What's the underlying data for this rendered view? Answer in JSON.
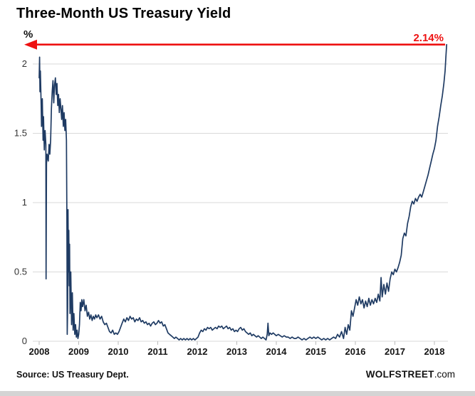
{
  "chart_data": {
    "type": "line",
    "title": "Three-Month US Treasury Yield",
    "unit": "%",
    "xlabel": "",
    "ylabel": "%",
    "x_ticks": [
      2008,
      2009,
      2010,
      2011,
      2012,
      2013,
      2014,
      2015,
      2016,
      2017,
      2018
    ],
    "y_ticks": [
      {
        "value": 0,
        "label": "0"
      },
      {
        "value": 0.5,
        "label": "0.5"
      },
      {
        "value": 1,
        "label": "1"
      },
      {
        "value": 1.5,
        "label": "1.5"
      },
      {
        "value": 2,
        "label": "2"
      }
    ],
    "ylim": [
      0,
      2.2
    ],
    "xlim": [
      2008,
      2018.35
    ],
    "grid": "horizontal",
    "legend": "none",
    "line_color": "#1f3b63",
    "annotation": {
      "label": "2.14%",
      "value": 2.14,
      "color": "#ee1111",
      "style": "horizontal-arrow-pointing-left",
      "span": "full-plot-width"
    },
    "source_note": "Source: US Treasury Dept.",
    "watermark_bold": "WOLFSTREET",
    "watermark_rest": ".com",
    "series": [
      {
        "name": "3-Month US Treasury Yield",
        "points": [
          [
            2008.0,
            1.9
          ],
          [
            2008.01,
            2.05
          ],
          [
            2008.02,
            1.8
          ],
          [
            2008.03,
            1.95
          ],
          [
            2008.05,
            1.7
          ],
          [
            2008.06,
            1.55
          ],
          [
            2008.08,
            1.75
          ],
          [
            2008.1,
            1.45
          ],
          [
            2008.11,
            1.62
          ],
          [
            2008.13,
            1.38
          ],
          [
            2008.15,
            1.52
          ],
          [
            2008.17,
            1.42
          ],
          [
            2008.175,
            0.45
          ],
          [
            2008.185,
            1.28
          ],
          [
            2008.2,
            1.35
          ],
          [
            2008.23,
            1.3
          ],
          [
            2008.25,
            1.42
          ],
          [
            2008.27,
            1.35
          ],
          [
            2008.29,
            1.45
          ],
          [
            2008.31,
            1.68
          ],
          [
            2008.33,
            1.8
          ],
          [
            2008.35,
            1.88
          ],
          [
            2008.37,
            1.72
          ],
          [
            2008.39,
            1.85
          ],
          [
            2008.41,
            1.9
          ],
          [
            2008.43,
            1.78
          ],
          [
            2008.45,
            1.86
          ],
          [
            2008.47,
            1.7
          ],
          [
            2008.49,
            1.78
          ],
          [
            2008.51,
            1.65
          ],
          [
            2008.53,
            1.75
          ],
          [
            2008.55,
            1.68
          ],
          [
            2008.57,
            1.6
          ],
          [
            2008.59,
            1.7
          ],
          [
            2008.61,
            1.55
          ],
          [
            2008.63,
            1.65
          ],
          [
            2008.65,
            1.52
          ],
          [
            2008.67,
            1.6
          ],
          [
            2008.69,
            1.45
          ],
          [
            2008.7,
            0.9
          ],
          [
            2008.71,
            0.05
          ],
          [
            2008.72,
            0.25
          ],
          [
            2008.73,
            0.95
          ],
          [
            2008.74,
            0.5
          ],
          [
            2008.75,
            0.8
          ],
          [
            2008.76,
            0.4
          ],
          [
            2008.77,
            0.7
          ],
          [
            2008.78,
            0.2
          ],
          [
            2008.8,
            0.5
          ],
          [
            2008.82,
            0.12
          ],
          [
            2008.84,
            0.35
          ],
          [
            2008.86,
            0.08
          ],
          [
            2008.88,
            0.2
          ],
          [
            2008.9,
            0.05
          ],
          [
            2008.92,
            0.12
          ],
          [
            2008.94,
            0.03
          ],
          [
            2008.96,
            0.08
          ],
          [
            2008.98,
            0.02
          ],
          [
            2009.0,
            0.05
          ],
          [
            2009.02,
            0.12
          ],
          [
            2009.04,
            0.28
          ],
          [
            2009.06,
            0.22
          ],
          [
            2009.08,
            0.3
          ],
          [
            2009.1,
            0.25
          ],
          [
            2009.13,
            0.3
          ],
          [
            2009.16,
            0.22
          ],
          [
            2009.19,
            0.26
          ],
          [
            2009.22,
            0.18
          ],
          [
            2009.25,
            0.21
          ],
          [
            2009.28,
            0.16
          ],
          [
            2009.31,
            0.19
          ],
          [
            2009.34,
            0.15
          ],
          [
            2009.37,
            0.18
          ],
          [
            2009.4,
            0.16
          ],
          [
            2009.43,
            0.19
          ],
          [
            2009.46,
            0.17
          ],
          [
            2009.5,
            0.19
          ],
          [
            2009.54,
            0.16
          ],
          [
            2009.58,
            0.18
          ],
          [
            2009.62,
            0.14
          ],
          [
            2009.66,
            0.12
          ],
          [
            2009.7,
            0.13
          ],
          [
            2009.74,
            0.1
          ],
          [
            2009.78,
            0.07
          ],
          [
            2009.82,
            0.06
          ],
          [
            2009.86,
            0.08
          ],
          [
            2009.9,
            0.05
          ],
          [
            2009.94,
            0.06
          ],
          [
            2009.98,
            0.05
          ],
          [
            2010.02,
            0.07
          ],
          [
            2010.06,
            0.1
          ],
          [
            2010.1,
            0.13
          ],
          [
            2010.14,
            0.16
          ],
          [
            2010.18,
            0.14
          ],
          [
            2010.22,
            0.17
          ],
          [
            2010.26,
            0.15
          ],
          [
            2010.3,
            0.18
          ],
          [
            2010.34,
            0.16
          ],
          [
            2010.38,
            0.17
          ],
          [
            2010.42,
            0.14
          ],
          [
            2010.46,
            0.16
          ],
          [
            2010.5,
            0.15
          ],
          [
            2010.54,
            0.17
          ],
          [
            2010.58,
            0.14
          ],
          [
            2010.62,
            0.15
          ],
          [
            2010.66,
            0.13
          ],
          [
            2010.7,
            0.14
          ],
          [
            2010.74,
            0.12
          ],
          [
            2010.78,
            0.13
          ],
          [
            2010.82,
            0.11
          ],
          [
            2010.86,
            0.13
          ],
          [
            2010.9,
            0.14
          ],
          [
            2010.94,
            0.12
          ],
          [
            2010.98,
            0.13
          ],
          [
            2011.02,
            0.15
          ],
          [
            2011.06,
            0.13
          ],
          [
            2011.1,
            0.14
          ],
          [
            2011.14,
            0.11
          ],
          [
            2011.18,
            0.12
          ],
          [
            2011.22,
            0.09
          ],
          [
            2011.26,
            0.06
          ],
          [
            2011.3,
            0.05
          ],
          [
            2011.34,
            0.04
          ],
          [
            2011.38,
            0.03
          ],
          [
            2011.42,
            0.02
          ],
          [
            2011.46,
            0.03
          ],
          [
            2011.5,
            0.02
          ],
          [
            2011.54,
            0.01
          ],
          [
            2011.58,
            0.02
          ],
          [
            2011.62,
            0.01
          ],
          [
            2011.66,
            0.02
          ],
          [
            2011.7,
            0.01
          ],
          [
            2011.74,
            0.02
          ],
          [
            2011.78,
            0.01
          ],
          [
            2011.82,
            0.02
          ],
          [
            2011.86,
            0.01
          ],
          [
            2011.9,
            0.02
          ],
          [
            2011.94,
            0.01
          ],
          [
            2011.98,
            0.02
          ],
          [
            2012.02,
            0.03
          ],
          [
            2012.06,
            0.06
          ],
          [
            2012.1,
            0.08
          ],
          [
            2012.14,
            0.07
          ],
          [
            2012.18,
            0.09
          ],
          [
            2012.22,
            0.08
          ],
          [
            2012.26,
            0.1
          ],
          [
            2012.3,
            0.09
          ],
          [
            2012.34,
            0.1
          ],
          [
            2012.38,
            0.08
          ],
          [
            2012.42,
            0.09
          ],
          [
            2012.46,
            0.1
          ],
          [
            2012.5,
            0.09
          ],
          [
            2012.54,
            0.11
          ],
          [
            2012.58,
            0.1
          ],
          [
            2012.62,
            0.11
          ],
          [
            2012.66,
            0.09
          ],
          [
            2012.7,
            0.1
          ],
          [
            2012.74,
            0.11
          ],
          [
            2012.78,
            0.09
          ],
          [
            2012.82,
            0.1
          ],
          [
            2012.86,
            0.08
          ],
          [
            2012.9,
            0.09
          ],
          [
            2012.94,
            0.07
          ],
          [
            2012.98,
            0.08
          ],
          [
            2013.02,
            0.07
          ],
          [
            2013.06,
            0.09
          ],
          [
            2013.1,
            0.1
          ],
          [
            2013.14,
            0.08
          ],
          [
            2013.18,
            0.09
          ],
          [
            2013.22,
            0.07
          ],
          [
            2013.26,
            0.06
          ],
          [
            2013.3,
            0.05
          ],
          [
            2013.34,
            0.06
          ],
          [
            2013.38,
            0.04
          ],
          [
            2013.42,
            0.05
          ],
          [
            2013.46,
            0.04
          ],
          [
            2013.5,
            0.03
          ],
          [
            2013.54,
            0.04
          ],
          [
            2013.58,
            0.03
          ],
          [
            2013.62,
            0.02
          ],
          [
            2013.66,
            0.03
          ],
          [
            2013.7,
            0.02
          ],
          [
            2013.74,
            0.01
          ],
          [
            2013.77,
            0.05
          ],
          [
            2013.79,
            0.13
          ],
          [
            2013.81,
            0.04
          ],
          [
            2013.84,
            0.06
          ],
          [
            2013.88,
            0.05
          ],
          [
            2013.92,
            0.06
          ],
          [
            2013.96,
            0.05
          ],
          [
            2014.0,
            0.04
          ],
          [
            2014.05,
            0.05
          ],
          [
            2014.1,
            0.04
          ],
          [
            2014.15,
            0.03
          ],
          [
            2014.2,
            0.04
          ],
          [
            2014.25,
            0.03
          ],
          [
            2014.3,
            0.03
          ],
          [
            2014.35,
            0.02
          ],
          [
            2014.4,
            0.03
          ],
          [
            2014.45,
            0.02
          ],
          [
            2014.5,
            0.02
          ],
          [
            2014.55,
            0.03
          ],
          [
            2014.6,
            0.02
          ],
          [
            2014.65,
            0.01
          ],
          [
            2014.7,
            0.02
          ],
          [
            2014.75,
            0.01
          ],
          [
            2014.8,
            0.02
          ],
          [
            2014.85,
            0.03
          ],
          [
            2014.9,
            0.02
          ],
          [
            2014.95,
            0.03
          ],
          [
            2015.0,
            0.02
          ],
          [
            2015.05,
            0.03
          ],
          [
            2015.1,
            0.02
          ],
          [
            2015.15,
            0.01
          ],
          [
            2015.2,
            0.02
          ],
          [
            2015.25,
            0.01
          ],
          [
            2015.3,
            0.02
          ],
          [
            2015.35,
            0.01
          ],
          [
            2015.4,
            0.02
          ],
          [
            2015.45,
            0.03
          ],
          [
            2015.5,
            0.02
          ],
          [
            2015.55,
            0.05
          ],
          [
            2015.6,
            0.03
          ],
          [
            2015.65,
            0.07
          ],
          [
            2015.7,
            0.02
          ],
          [
            2015.74,
            0.1
          ],
          [
            2015.78,
            0.05
          ],
          [
            2015.82,
            0.12
          ],
          [
            2015.86,
            0.08
          ],
          [
            2015.9,
            0.22
          ],
          [
            2015.94,
            0.18
          ],
          [
            2015.98,
            0.24
          ],
          [
            2016.02,
            0.3
          ],
          [
            2016.06,
            0.26
          ],
          [
            2016.1,
            0.32
          ],
          [
            2016.14,
            0.27
          ],
          [
            2016.18,
            0.3
          ],
          [
            2016.22,
            0.24
          ],
          [
            2016.26,
            0.29
          ],
          [
            2016.3,
            0.25
          ],
          [
            2016.34,
            0.31
          ],
          [
            2016.38,
            0.26
          ],
          [
            2016.42,
            0.3
          ],
          [
            2016.46,
            0.27
          ],
          [
            2016.5,
            0.31
          ],
          [
            2016.54,
            0.28
          ],
          [
            2016.58,
            0.34
          ],
          [
            2016.62,
            0.29
          ],
          [
            2016.65,
            0.46
          ],
          [
            2016.68,
            0.32
          ],
          [
            2016.72,
            0.41
          ],
          [
            2016.76,
            0.34
          ],
          [
            2016.8,
            0.42
          ],
          [
            2016.84,
            0.36
          ],
          [
            2016.88,
            0.45
          ],
          [
            2016.92,
            0.5
          ],
          [
            2016.96,
            0.48
          ],
          [
            2017.0,
            0.52
          ],
          [
            2017.04,
            0.5
          ],
          [
            2017.08,
            0.53
          ],
          [
            2017.12,
            0.57
          ],
          [
            2017.16,
            0.62
          ],
          [
            2017.2,
            0.74
          ],
          [
            2017.24,
            0.78
          ],
          [
            2017.28,
            0.76
          ],
          [
            2017.32,
            0.85
          ],
          [
            2017.36,
            0.9
          ],
          [
            2017.4,
            0.97
          ],
          [
            2017.44,
            1.01
          ],
          [
            2017.48,
            0.99
          ],
          [
            2017.52,
            1.03
          ],
          [
            2017.56,
            1.01
          ],
          [
            2017.6,
            1.04
          ],
          [
            2017.64,
            1.06
          ],
          [
            2017.68,
            1.04
          ],
          [
            2017.72,
            1.08
          ],
          [
            2017.76,
            1.12
          ],
          [
            2017.8,
            1.16
          ],
          [
            2017.84,
            1.2
          ],
          [
            2017.88,
            1.25
          ],
          [
            2017.92,
            1.3
          ],
          [
            2017.96,
            1.35
          ],
          [
            2018.0,
            1.39
          ],
          [
            2018.04,
            1.45
          ],
          [
            2018.08,
            1.55
          ],
          [
            2018.12,
            1.62
          ],
          [
            2018.16,
            1.7
          ],
          [
            2018.2,
            1.77
          ],
          [
            2018.24,
            1.86
          ],
          [
            2018.27,
            1.95
          ],
          [
            2018.29,
            2.05
          ],
          [
            2018.31,
            2.14
          ]
        ]
      }
    ]
  }
}
